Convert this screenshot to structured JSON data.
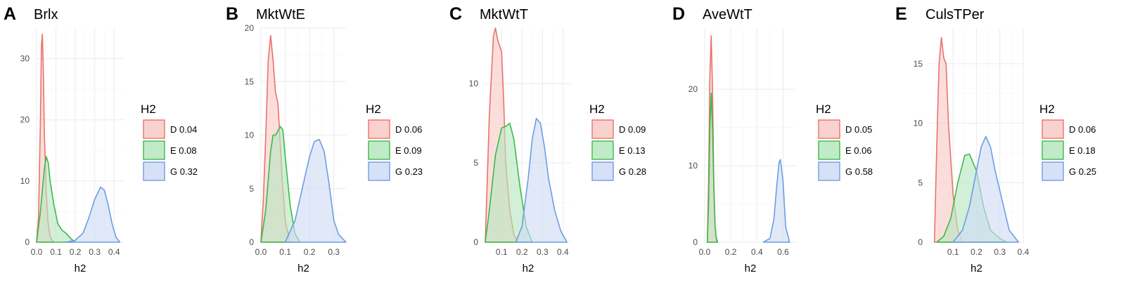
{
  "chart_data": [
    {
      "type": "area",
      "panel_letter": "A",
      "title": "Brlx",
      "xlabel": "h2",
      "ylabel": "",
      "xlim": [
        0.0,
        0.45
      ],
      "ylim": [
        0,
        35
      ],
      "xticks": [
        0.0,
        0.1,
        0.2,
        0.3,
        0.4
      ],
      "xtick_labels": [
        "0.0",
        "0.1",
        "0.2",
        "0.3",
        "0.4"
      ],
      "yticks": [
        0,
        10,
        20,
        30
      ],
      "ytick_labels": [
        "0",
        "10",
        "20",
        "30"
      ],
      "legend_title": "H2",
      "series": [
        {
          "key": "D",
          "name": "D",
          "value_label": "0.04",
          "color": "#e9736b",
          "fill": "#f8c9c6",
          "x": [
            0.0,
            0.01,
            0.02,
            0.025,
            0.03,
            0.035,
            0.04,
            0.05,
            0.06,
            0.07,
            0.08,
            0.09
          ],
          "y": [
            0,
            4,
            20,
            32,
            34,
            28,
            18,
            8,
            3,
            1,
            0.3,
            0
          ]
        },
        {
          "key": "E",
          "name": "E",
          "value_label": "0.08",
          "color": "#3dba4a",
          "fill": "#b6e7be",
          "x": [
            0.0,
            0.02,
            0.04,
            0.05,
            0.06,
            0.07,
            0.09,
            0.11,
            0.13,
            0.15,
            0.18,
            0.2
          ],
          "y": [
            0,
            5,
            12,
            14,
            13,
            10,
            6,
            3,
            2,
            1.5,
            0.5,
            0
          ]
        },
        {
          "key": "G",
          "name": "G",
          "value_label": "0.32",
          "color": "#6c9ee3",
          "fill": "#cfdcf6",
          "x": [
            0.15,
            0.2,
            0.24,
            0.27,
            0.3,
            0.33,
            0.35,
            0.37,
            0.39,
            0.41,
            0.43
          ],
          "y": [
            0,
            0.3,
            1.5,
            4,
            7,
            9,
            8.5,
            6,
            3,
            0.8,
            0
          ]
        }
      ]
    },
    {
      "type": "area",
      "panel_letter": "B",
      "title": "MktWtE",
      "xlabel": "h2",
      "ylabel": "",
      "xlim": [
        0.0,
        0.35
      ],
      "ylim": [
        0,
        20
      ],
      "xticks": [
        0.0,
        0.1,
        0.2,
        0.3
      ],
      "xtick_labels": [
        "0.0",
        "0.1",
        "0.2",
        "0.3"
      ],
      "yticks": [
        0,
        5,
        10,
        15,
        20
      ],
      "ytick_labels": [
        "0",
        "5",
        "10",
        "15",
        "20"
      ],
      "legend_title": "H2",
      "series": [
        {
          "key": "D",
          "name": "D",
          "value_label": "0.06",
          "color": "#e9736b",
          "fill": "#f8c9c6",
          "x": [
            0.0,
            0.01,
            0.02,
            0.03,
            0.04,
            0.05,
            0.06,
            0.07,
            0.08,
            0.09,
            0.1,
            0.12
          ],
          "y": [
            0,
            4,
            10,
            17,
            19.3,
            17,
            14,
            13,
            9,
            5,
            2,
            0
          ]
        },
        {
          "key": "E",
          "name": "E",
          "value_label": "0.09",
          "color": "#3dba4a",
          "fill": "#b6e7be",
          "x": [
            0.0,
            0.02,
            0.04,
            0.05,
            0.06,
            0.08,
            0.09,
            0.1,
            0.12,
            0.14,
            0.16
          ],
          "y": [
            0,
            3,
            8.5,
            10,
            10,
            10.8,
            10.5,
            8,
            3.5,
            0.8,
            0
          ]
        },
        {
          "key": "G",
          "name": "G",
          "value_label": "0.23",
          "color": "#6c9ee3",
          "fill": "#cfdcf6",
          "x": [
            0.1,
            0.14,
            0.17,
            0.2,
            0.22,
            0.24,
            0.26,
            0.28,
            0.3,
            0.32,
            0.35
          ],
          "y": [
            0,
            2,
            5,
            8,
            9.4,
            9.6,
            8.5,
            5.5,
            2,
            0.7,
            0
          ]
        }
      ]
    },
    {
      "type": "area",
      "panel_letter": "C",
      "title": "MktWtT",
      "xlabel": "h2",
      "ylabel": "",
      "xlim": [
        0.02,
        0.44
      ],
      "ylim": [
        0,
        13.5
      ],
      "xticks": [
        0.1,
        0.2,
        0.3,
        0.4
      ],
      "xtick_labels": [
        "0.1",
        "0.2",
        "0.3",
        "0.4"
      ],
      "yticks": [
        0,
        5,
        10
      ],
      "ytick_labels": [
        "0",
        "5",
        "10"
      ],
      "legend_title": "H2",
      "series": [
        {
          "key": "D",
          "name": "D",
          "value_label": "0.09",
          "color": "#e9736b",
          "fill": "#f8c9c6",
          "x": [
            0.02,
            0.04,
            0.06,
            0.07,
            0.08,
            0.1,
            0.11,
            0.12,
            0.14,
            0.16,
            0.18
          ],
          "y": [
            0,
            8,
            13,
            13.5,
            12.8,
            12,
            9,
            5,
            2,
            0.5,
            0
          ]
        },
        {
          "key": "E",
          "name": "E",
          "value_label": "0.13",
          "color": "#3dba4a",
          "fill": "#b6e7be",
          "x": [
            0.02,
            0.04,
            0.07,
            0.1,
            0.12,
            0.14,
            0.16,
            0.19,
            0.22,
            0.25
          ],
          "y": [
            0,
            2,
            5.5,
            7.2,
            7.3,
            7.5,
            6.5,
            3.5,
            1,
            0
          ]
        },
        {
          "key": "G",
          "name": "G",
          "value_label": "0.28",
          "color": "#6c9ee3",
          "fill": "#cfdcf6",
          "x": [
            0.17,
            0.2,
            0.23,
            0.25,
            0.27,
            0.29,
            0.31,
            0.33,
            0.36,
            0.39,
            0.42
          ],
          "y": [
            0,
            1,
            4,
            6.5,
            7.8,
            7.5,
            6,
            4,
            2,
            0.7,
            0
          ]
        }
      ]
    },
    {
      "type": "area",
      "panel_letter": "D",
      "title": "AveWtT",
      "xlabel": "h2",
      "ylabel": "",
      "xlim": [
        0.0,
        0.7
      ],
      "ylim": [
        0,
        28
      ],
      "xticks": [
        0.0,
        0.2,
        0.4,
        0.6
      ],
      "xtick_labels": [
        "0.0",
        "0.2",
        "0.4",
        "0.6"
      ],
      "yticks": [
        0,
        10,
        20
      ],
      "ytick_labels": [
        "0",
        "10",
        "20"
      ],
      "legend_title": "H2",
      "series": [
        {
          "key": "D",
          "name": "D",
          "value_label": "0.05",
          "color": "#e9736b",
          "fill": "#f8c9c6",
          "x": [
            0.02,
            0.03,
            0.04,
            0.05,
            0.06,
            0.07,
            0.08,
            0.09
          ],
          "y": [
            0,
            8,
            22,
            27,
            20,
            8,
            2,
            0
          ]
        },
        {
          "key": "E",
          "name": "E",
          "value_label": "0.06",
          "color": "#3dba4a",
          "fill": "#b6e7be",
          "x": [
            0.02,
            0.03,
            0.04,
            0.05,
            0.06,
            0.07,
            0.08,
            0.09,
            0.1
          ],
          "y": [
            0,
            5,
            15,
            19.5,
            15,
            7,
            2,
            0.5,
            0
          ]
        },
        {
          "key": "G",
          "name": "G",
          "value_label": "0.58",
          "color": "#6c9ee3",
          "fill": "#cfdcf6",
          "x": [
            0.45,
            0.5,
            0.53,
            0.55,
            0.57,
            0.58,
            0.6,
            0.62,
            0.65
          ],
          "y": [
            0,
            0.5,
            3,
            7,
            10.5,
            10.8,
            8,
            2,
            0
          ]
        }
      ]
    },
    {
      "type": "area",
      "panel_letter": "E",
      "title": "CulsTPer",
      "xlabel": "h2",
      "ylabel": "",
      "xlim": [
        0.0,
        0.4
      ],
      "ylim": [
        0,
        18
      ],
      "xticks": [
        0.1,
        0.2,
        0.3,
        0.4
      ],
      "xtick_labels": [
        "0.1",
        "0.2",
        "0.3",
        "0.4"
      ],
      "yticks": [
        0,
        5,
        10,
        15
      ],
      "ytick_labels": [
        "0",
        "5",
        "10",
        "15"
      ],
      "legend_title": "H2",
      "series": [
        {
          "key": "D",
          "name": "D",
          "value_label": "0.06",
          "color": "#e9736b",
          "fill": "#f8c9c6",
          "x": [
            0.02,
            0.03,
            0.04,
            0.05,
            0.06,
            0.07,
            0.08,
            0.1,
            0.12,
            0.14
          ],
          "y": [
            0,
            8,
            15,
            17.2,
            15.5,
            15,
            10,
            4,
            1,
            0
          ]
        },
        {
          "key": "E",
          "name": "E",
          "value_label": "0.18",
          "color": "#3dba4a",
          "fill": "#b6e7be",
          "x": [
            0.03,
            0.06,
            0.09,
            0.12,
            0.15,
            0.17,
            0.2,
            0.23,
            0.26,
            0.3,
            0.33
          ],
          "y": [
            0,
            0.5,
            2,
            5,
            7.3,
            7.4,
            6,
            3,
            1,
            0.3,
            0
          ]
        },
        {
          "key": "G",
          "name": "G",
          "value_label": "0.25",
          "color": "#6c9ee3",
          "fill": "#cfdcf6",
          "x": [
            0.1,
            0.14,
            0.17,
            0.2,
            0.22,
            0.24,
            0.26,
            0.28,
            0.31,
            0.34,
            0.38
          ],
          "y": [
            0,
            1,
            3,
            6,
            8,
            8.9,
            8,
            6,
            3.5,
            1,
            0
          ]
        }
      ]
    }
  ]
}
